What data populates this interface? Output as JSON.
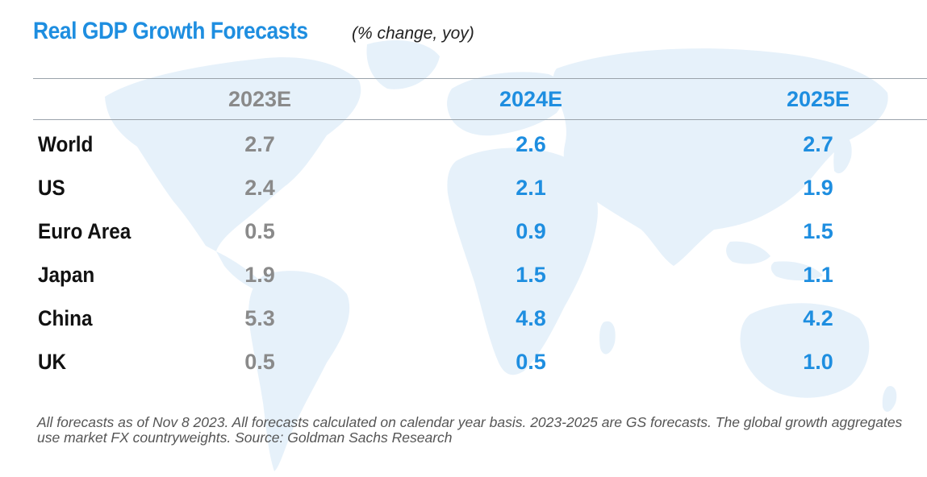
{
  "title": "Real GDP Growth Forecasts",
  "subtitle": "(% change, yoy)",
  "colors": {
    "accent": "#1e8ee0",
    "grey_value": "#8a8a8a",
    "row_label": "#111111",
    "map": "#e6f1fa"
  },
  "chart_data": {
    "type": "table",
    "title": "Real GDP Growth Forecasts",
    "subtitle": "(% change, yoy)",
    "columns": [
      "2023E",
      "2024E",
      "2025E"
    ],
    "rows": [
      {
        "label": "World",
        "values": [
          "2.7",
          "2.6",
          "2.7"
        ]
      },
      {
        "label": "US",
        "values": [
          "2.4",
          "2.1",
          "1.9"
        ]
      },
      {
        "label": "Euro Area",
        "values": [
          "0.5",
          "0.9",
          "1.5"
        ]
      },
      {
        "label": "Japan",
        "values": [
          "1.9",
          "1.5",
          "1.1"
        ]
      },
      {
        "label": "China",
        "values": [
          "5.3",
          "4.8",
          "4.2"
        ]
      },
      {
        "label": "UK",
        "values": [
          "0.5",
          "0.5",
          "1.0"
        ]
      }
    ]
  },
  "footnote": "All forecasts as of Nov 8 2023. All forecasts calculated on calendar year basis. 2023-2025 are GS forecasts. The global growth aggregates use market FX countryweights. Source: Goldman Sachs Research"
}
